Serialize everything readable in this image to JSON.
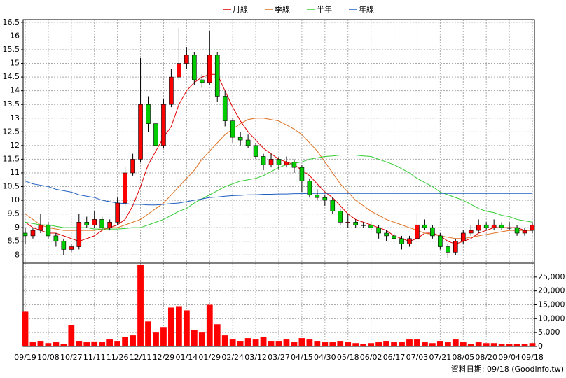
{
  "chart_data": {
    "type": "candlestick",
    "source_note": "資料日期: 09/18 (Goodinfo.tw)",
    "categories": [
      "09/19",
      null,
      null,
      "10/08",
      null,
      null,
      "10/27",
      null,
      null,
      "11/11",
      null,
      null,
      "11/26",
      null,
      null,
      "12/11",
      null,
      null,
      "12/29",
      null,
      null,
      "01/14",
      null,
      null,
      "01/29",
      null,
      null,
      "02/24",
      null,
      null,
      "03/12",
      null,
      null,
      "03/27",
      null,
      null,
      "04/15",
      null,
      null,
      "04/30",
      null,
      null,
      "05/18",
      null,
      null,
      "06/02",
      null,
      null,
      "06/17",
      null,
      null,
      "07/03",
      null,
      null,
      "07/21",
      null,
      null,
      "08/05",
      null,
      null,
      "08/20",
      null,
      null,
      "09/04",
      null,
      null,
      "09/18"
    ],
    "open": [
      8.8,
      8.7,
      8.9,
      9.1,
      8.7,
      8.5,
      8.2,
      8.3,
      9.2,
      9.1,
      9.3,
      9.0,
      9.2,
      9.9,
      11.0,
      11.5,
      13.5,
      12.8,
      12.0,
      13.5,
      14.5,
      15.0,
      15.3,
      14.4,
      14.3,
      15.3,
      13.8,
      12.9,
      12.3,
      12.2,
      12.0,
      11.6,
      11.3,
      11.5,
      11.3,
      11.4,
      11.2,
      10.7,
      10.2,
      10.1,
      10.0,
      9.6,
      9.2,
      9.2,
      9.1,
      9.1,
      9.0,
      8.8,
      8.7,
      8.6,
      8.4,
      8.6,
      9.1,
      9.0,
      8.7,
      8.3,
      8.1,
      8.5,
      8.8,
      8.9,
      9.1,
      9.0,
      9.1,
      9.0,
      9.0,
      8.8,
      8.9
    ],
    "high": [
      9.0,
      9.0,
      9.5,
      9.2,
      8.8,
      8.6,
      8.4,
      9.5,
      9.4,
      9.6,
      9.4,
      9.3,
      10.1,
      11.2,
      11.7,
      15.2,
      13.8,
      13.0,
      13.7,
      14.8,
      16.3,
      15.6,
      15.4,
      14.6,
      16.2,
      15.4,
      14.0,
      13.0,
      12.5,
      12.4,
      12.1,
      11.7,
      11.7,
      11.6,
      11.6,
      11.5,
      11.3,
      10.8,
      10.4,
      10.2,
      10.1,
      9.7,
      9.5,
      9.3,
      9.2,
      9.2,
      9.1,
      8.9,
      8.8,
      8.7,
      8.7,
      9.5,
      9.3,
      9.1,
      8.8,
      8.4,
      8.6,
      8.9,
      9.1,
      9.3,
      9.2,
      9.3,
      9.2,
      9.2,
      9.1,
      9.0,
      9.2
    ],
    "low": [
      8.4,
      8.6,
      8.8,
      8.6,
      8.3,
      8.0,
      8.1,
      8.2,
      9.0,
      9.0,
      8.9,
      8.9,
      9.1,
      9.8,
      10.9,
      11.4,
      12.5,
      11.9,
      11.9,
      13.4,
      14.4,
      14.8,
      14.2,
      14.1,
      14.2,
      13.6,
      12.7,
      12.1,
      12.0,
      11.9,
      11.5,
      11.1,
      11.2,
      11.1,
      11.2,
      11.0,
      10.3,
      10.1,
      10.0,
      9.8,
      9.5,
      9.1,
      9.0,
      9.0,
      9.0,
      8.9,
      8.6,
      8.5,
      8.4,
      8.2,
      8.3,
      8.5,
      8.9,
      8.6,
      8.2,
      7.9,
      8.0,
      8.4,
      8.7,
      8.8,
      8.9,
      8.9,
      8.9,
      8.9,
      8.7,
      8.7,
      8.8
    ],
    "close": [
      8.7,
      8.9,
      9.1,
      8.7,
      8.5,
      8.2,
      8.3,
      9.2,
      9.1,
      9.3,
      9.0,
      9.2,
      9.9,
      11.0,
      11.5,
      13.5,
      12.8,
      12.0,
      13.5,
      14.5,
      15.0,
      15.3,
      14.4,
      14.3,
      15.3,
      13.8,
      12.9,
      12.3,
      12.2,
      12.0,
      11.6,
      11.3,
      11.5,
      11.3,
      11.4,
      11.2,
      10.7,
      10.2,
      10.1,
      10.0,
      9.6,
      9.2,
      9.2,
      9.1,
      9.1,
      9.0,
      8.8,
      8.7,
      8.6,
      8.4,
      8.6,
      9.1,
      9.0,
      8.7,
      8.3,
      8.1,
      8.5,
      8.8,
      8.9,
      9.1,
      9.0,
      9.1,
      9.0,
      9.0,
      8.8,
      8.9,
      9.1
    ],
    "up_color": "#ff0000",
    "down_color": "#00cc00",
    "series": [
      {
        "name": "月線",
        "color": "#e00000",
        "values": [
          9.2,
          9.0,
          8.9,
          8.8,
          8.8,
          8.7,
          8.6,
          8.5,
          8.6,
          8.7,
          8.9,
          9.0,
          9.1,
          9.3,
          9.8,
          10.5,
          11.3,
          11.8,
          12.3,
          12.7,
          13.5,
          14.0,
          14.3,
          14.5,
          14.6,
          14.6,
          14.0,
          13.4,
          12.9,
          12.5,
          12.2,
          11.9,
          11.7,
          11.5,
          11.4,
          11.3,
          11.1,
          10.9,
          10.6,
          10.3,
          10.1,
          9.8,
          9.5,
          9.3,
          9.2,
          9.1,
          9.0,
          8.9,
          8.7,
          8.6,
          8.5,
          8.6,
          8.8,
          8.8,
          8.7,
          8.5,
          8.4,
          8.5,
          8.6,
          8.8,
          8.9,
          9.0,
          9.0,
          9.0,
          9.0,
          8.9,
          8.9
        ]
      },
      {
        "name": "季線",
        "color": "#e07020",
        "values": [
          9.5,
          9.3,
          9.1,
          9.0,
          8.95,
          8.9,
          8.9,
          8.9,
          8.9,
          8.9,
          8.95,
          9.0,
          9.0,
          9.1,
          9.2,
          9.3,
          9.5,
          9.7,
          9.9,
          10.2,
          10.5,
          10.8,
          11.1,
          11.5,
          11.8,
          12.1,
          12.4,
          12.6,
          12.8,
          12.95,
          13.0,
          13.0,
          12.95,
          12.9,
          12.75,
          12.6,
          12.4,
          12.1,
          11.8,
          11.4,
          11.0,
          10.6,
          10.3,
          10.0,
          9.8,
          9.6,
          9.45,
          9.3,
          9.2,
          9.1,
          9.0,
          8.9,
          8.8,
          8.75,
          8.7,
          8.65,
          8.6,
          8.6,
          8.65,
          8.7,
          8.75,
          8.8,
          8.85,
          8.9,
          8.9,
          8.9,
          8.9
        ]
      },
      {
        "name": "半年",
        "color": "#33cc33",
        "values": [
          9.2,
          9.15,
          9.1,
          9.1,
          9.05,
          9.0,
          9.0,
          9.0,
          9.0,
          8.95,
          8.95,
          8.95,
          8.95,
          8.97,
          9.0,
          9.0,
          9.1,
          9.2,
          9.3,
          9.45,
          9.6,
          9.7,
          9.9,
          10.05,
          10.2,
          10.35,
          10.5,
          10.6,
          10.7,
          10.75,
          10.8,
          10.9,
          11.05,
          11.2,
          11.3,
          11.35,
          11.4,
          11.5,
          11.55,
          11.6,
          11.62,
          11.65,
          11.65,
          11.65,
          11.62,
          11.6,
          11.5,
          11.4,
          11.3,
          11.15,
          11.0,
          10.8,
          10.65,
          10.5,
          10.3,
          10.2,
          10.1,
          10.0,
          9.85,
          9.7,
          9.6,
          9.55,
          9.45,
          9.4,
          9.3,
          9.25,
          9.2
        ]
      },
      {
        "name": "年線",
        "color": "#1f5fbf",
        "values": [
          10.7,
          10.6,
          10.55,
          10.5,
          10.4,
          10.35,
          10.3,
          10.2,
          10.15,
          10.1,
          10.0,
          9.95,
          9.9,
          9.88,
          9.85,
          9.85,
          9.83,
          9.83,
          9.85,
          9.88,
          9.9,
          9.95,
          10.0,
          10.05,
          10.1,
          10.12,
          10.15,
          10.17,
          10.18,
          10.2,
          10.2,
          10.22,
          10.22,
          10.23,
          10.23,
          10.24,
          10.24,
          10.25,
          10.25,
          10.25,
          10.25,
          10.25,
          10.25,
          10.25,
          10.25,
          10.25,
          10.25,
          10.25,
          10.25,
          10.25,
          10.25,
          10.25,
          10.25,
          10.25,
          10.25,
          10.25,
          10.25,
          10.25,
          10.25,
          10.25,
          10.25,
          10.25,
          10.25,
          10.25,
          10.25,
          10.25,
          10.25
        ]
      }
    ],
    "volume": [
      12500,
      1500,
      2000,
      1200,
      1500,
      800,
      7800,
      2000,
      1500,
      1800,
      1500,
      2500,
      2000,
      3500,
      4000,
      29500,
      9000,
      5000,
      7000,
      14000,
      14500,
      13000,
      6000,
      5000,
      15000,
      8000,
      4000,
      2500,
      2000,
      3000,
      2500,
      3500,
      2000,
      2000,
      2500,
      1500,
      3000,
      2500,
      2000,
      1500,
      1500,
      2000,
      1500,
      1200,
      1000,
      1200,
      1500,
      2000,
      1500,
      1500,
      2500,
      2500,
      1500,
      1200,
      2000,
      1500,
      2500,
      1500,
      1000,
      1500,
      1200,
      1200,
      1000,
      800,
      1000,
      800,
      1200
    ],
    "volume_color": "#ff0000",
    "ylim": [
      7.7,
      16.6
    ],
    "yticks": [
      8,
      8.5,
      9,
      9.5,
      10,
      10.5,
      11,
      11.5,
      12,
      12.5,
      13,
      13.5,
      14,
      14.5,
      15,
      15.5,
      16,
      16.5
    ],
    "y2lim": [
      0,
      30000
    ],
    "y2ticks": [
      0,
      {
        "value": 5000,
        "label": "5,000"
      },
      {
        "value": 10000,
        "label": "10,000"
      },
      {
        "value": 15000,
        "label": "15,000"
      },
      {
        "value": 20000,
        "label": "20,000"
      },
      {
        "value": 25000,
        "label": "25,000"
      }
    ],
    "grid": true
  }
}
